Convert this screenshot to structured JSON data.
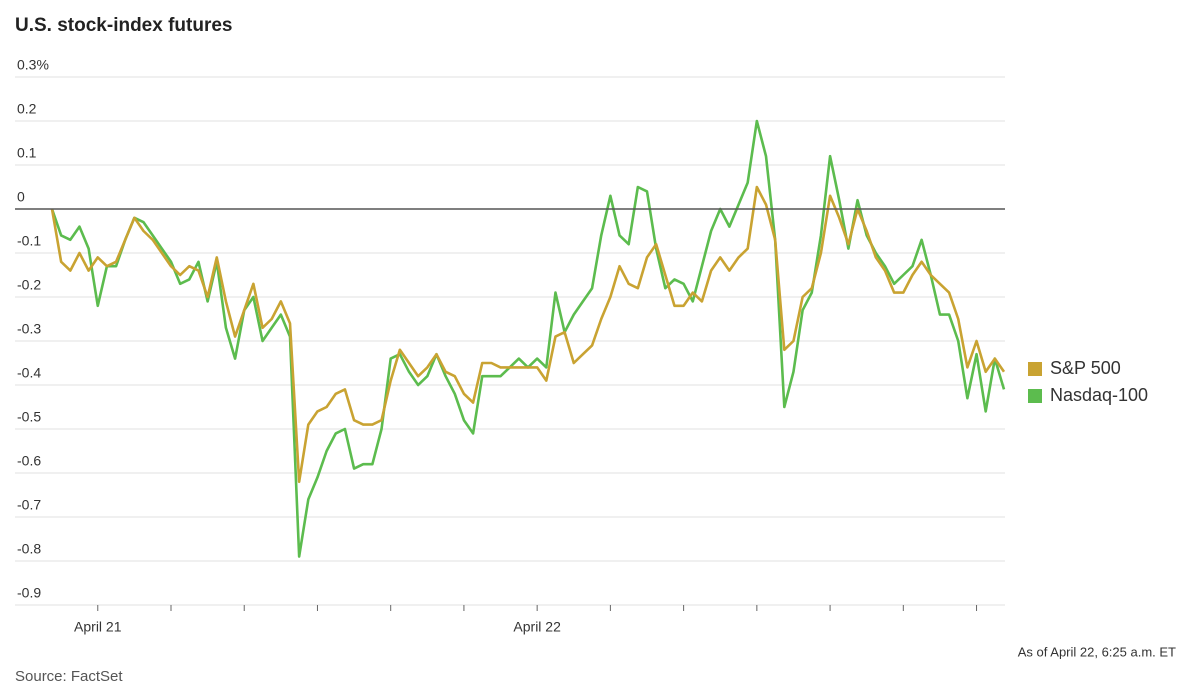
{
  "chart_data": {
    "type": "line",
    "title": "U.S. stock-index futures",
    "source": "Source: FactSet",
    "note": "As of April 22, 6:25 a.m. ET",
    "categories": [
      null,
      null,
      null,
      null,
      null,
      "April 21",
      null,
      null,
      null,
      null,
      null,
      null,
      null,
      null,
      null,
      null,
      null,
      null,
      null,
      null,
      null,
      null,
      null,
      null,
      null,
      null,
      null,
      null,
      null,
      null,
      null,
      null,
      null,
      null,
      null,
      null,
      null,
      null,
      null,
      null,
      null,
      null,
      null,
      null,
      null,
      null,
      null,
      null,
      null,
      null,
      null,
      null,
      null,
      "April 22",
      null,
      null,
      null,
      null,
      null,
      null,
      null,
      null,
      null,
      null,
      null,
      null,
      null,
      null,
      null,
      null,
      null,
      null,
      null,
      null,
      null,
      null,
      null,
      null,
      null,
      null,
      null,
      null,
      null,
      null,
      null,
      null,
      null,
      null,
      null,
      null,
      null,
      null,
      null,
      null,
      null,
      null,
      null,
      null,
      null,
      null,
      null,
      null,
      null,
      null,
      null
    ],
    "series": [
      {
        "name": "S&P 500",
        "color": "#c9a332",
        "values": [
          0,
          -0.12,
          -0.14,
          -0.1,
          -0.14,
          -0.11,
          -0.13,
          -0.12,
          -0.07,
          -0.02,
          -0.05,
          -0.07,
          -0.1,
          -0.13,
          -0.15,
          -0.13,
          -0.14,
          -0.2,
          -0.11,
          -0.21,
          -0.29,
          -0.23,
          -0.17,
          -0.27,
          -0.25,
          -0.21,
          -0.26,
          -0.62,
          -0.49,
          -0.46,
          -0.45,
          -0.42,
          -0.41,
          -0.48,
          -0.49,
          -0.49,
          -0.48,
          -0.39,
          -0.32,
          -0.35,
          -0.38,
          -0.36,
          -0.33,
          -0.37,
          -0.38,
          -0.42,
          -0.44,
          -0.35,
          -0.35,
          -0.36,
          -0.36,
          -0.36,
          -0.36,
          -0.36,
          -0.39,
          -0.29,
          -0.28,
          -0.35,
          -0.33,
          -0.31,
          -0.25,
          -0.2,
          -0.13,
          -0.17,
          -0.18,
          -0.11,
          -0.08,
          -0.15,
          -0.22,
          -0.22,
          -0.19,
          -0.21,
          -0.14,
          -0.11,
          -0.14,
          -0.11,
          -0.09,
          0.05,
          0.01,
          -0.07,
          -0.32,
          -0.3,
          -0.2,
          -0.18,
          -0.1,
          0.03,
          -0.02,
          -0.08,
          0,
          -0.05,
          -0.11,
          -0.14,
          -0.19,
          -0.19,
          -0.15,
          -0.12,
          -0.15,
          -0.17,
          -0.19,
          -0.25,
          -0.36,
          -0.3,
          -0.37,
          -0.34,
          -0.37
        ]
      },
      {
        "name": "Nasdaq-100",
        "color": "#5cbc4e",
        "values": [
          0,
          -0.06,
          -0.07,
          -0.04,
          -0.09,
          -0.22,
          -0.13,
          -0.13,
          -0.07,
          -0.02,
          -0.03,
          -0.06,
          -0.09,
          -0.12,
          -0.17,
          -0.16,
          -0.12,
          -0.21,
          -0.12,
          -0.27,
          -0.34,
          -0.23,
          -0.2,
          -0.3,
          -0.27,
          -0.24,
          -0.29,
          -0.79,
          -0.66,
          -0.61,
          -0.55,
          -0.51,
          -0.5,
          -0.59,
          -0.58,
          -0.58,
          -0.5,
          -0.34,
          -0.33,
          -0.37,
          -0.4,
          -0.38,
          -0.33,
          -0.38,
          -0.42,
          -0.48,
          -0.51,
          -0.38,
          -0.38,
          -0.38,
          -0.36,
          -0.34,
          -0.36,
          -0.34,
          -0.36,
          -0.19,
          -0.28,
          -0.24,
          -0.21,
          -0.18,
          -0.06,
          0.03,
          -0.06,
          -0.08,
          0.05,
          0.04,
          -0.09,
          -0.18,
          -0.16,
          -0.17,
          -0.21,
          -0.13,
          -0.05,
          0,
          -0.04,
          0.01,
          0.06,
          0.2,
          0.12,
          -0.07,
          -0.45,
          -0.37,
          -0.23,
          -0.19,
          -0.06,
          0.12,
          0.02,
          -0.09,
          0.02,
          -0.06,
          -0.1,
          -0.13,
          -0.17,
          -0.15,
          -0.13,
          -0.07,
          -0.15,
          -0.24,
          -0.24,
          -0.3,
          -0.43,
          -0.33,
          -0.46,
          -0.34,
          -0.41
        ]
      }
    ],
    "ylim": [
      -0.9,
      0.3
    ],
    "yticks": [
      {
        "value": 0.3,
        "label": "0.3%"
      },
      0.2,
      0.1,
      0,
      -0.1,
      -0.2,
      -0.3,
      -0.4,
      -0.5,
      -0.6,
      -0.7,
      -0.8,
      -0.9
    ],
    "grid": true,
    "legend": "right"
  }
}
